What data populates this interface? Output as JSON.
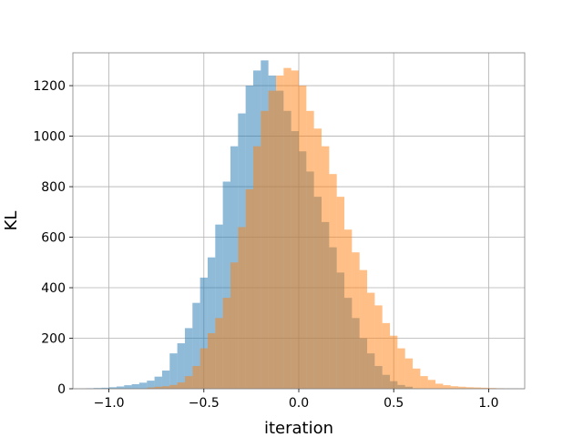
{
  "chart_data": {
    "type": "histogram",
    "title": "",
    "xlabel": "iteration",
    "ylabel": "KL",
    "xlim": [
      -1.19,
      1.19
    ],
    "ylim": [
      0,
      1330
    ],
    "grid": true,
    "legend": "none",
    "xticks": [
      -1.0,
      -0.5,
      0.0,
      0.5,
      1.0
    ],
    "xtick_labels": [
      "−1.0",
      "−0.5",
      "0.0",
      "0.5",
      "1.0"
    ],
    "yticks": [
      0,
      200,
      400,
      600,
      800,
      1000,
      1200
    ],
    "ytick_labels": [
      "0",
      "200",
      "400",
      "600",
      "800",
      "1000",
      "1200"
    ],
    "series": [
      {
        "color": "#1f77b4",
        "opacity": 0.5,
        "bin_edges": [
          -1.12,
          -1.08,
          -1.04,
          -1.0,
          -0.96,
          -0.92,
          -0.88,
          -0.84,
          -0.8,
          -0.76,
          -0.72,
          -0.68,
          -0.64,
          -0.6,
          -0.56,
          -0.52,
          -0.48,
          -0.44,
          -0.4,
          -0.36,
          -0.32,
          -0.28,
          -0.24,
          -0.2,
          -0.16,
          -0.12,
          -0.08,
          -0.04,
          0.0,
          0.04,
          0.08,
          0.12,
          0.16,
          0.2,
          0.24,
          0.28,
          0.32,
          0.36,
          0.4,
          0.44,
          0.48,
          0.52,
          0.56,
          0.6
        ],
        "counts": [
          2,
          3,
          4,
          6,
          9,
          14,
          18,
          24,
          32,
          48,
          72,
          140,
          180,
          240,
          340,
          440,
          520,
          650,
          820,
          960,
          1090,
          1200,
          1260,
          1300,
          1240,
          1180,
          1100,
          1020,
          940,
          860,
          760,
          660,
          560,
          460,
          360,
          280,
          200,
          140,
          90,
          55,
          30,
          15,
          8
        ]
      },
      {
        "color": "#ff7f0e",
        "opacity": 0.5,
        "bin_edges": [
          -0.8,
          -0.76,
          -0.72,
          -0.68,
          -0.64,
          -0.6,
          -0.56,
          -0.52,
          -0.48,
          -0.44,
          -0.4,
          -0.36,
          -0.32,
          -0.28,
          -0.24,
          -0.2,
          -0.16,
          -0.12,
          -0.08,
          -0.04,
          0.0,
          0.04,
          0.08,
          0.12,
          0.16,
          0.2,
          0.24,
          0.28,
          0.32,
          0.36,
          0.4,
          0.44,
          0.48,
          0.52,
          0.56,
          0.6,
          0.64,
          0.68,
          0.72,
          0.76,
          0.8,
          0.84,
          0.88,
          0.92,
          0.96,
          1.0,
          1.04,
          1.08
        ],
        "counts": [
          5,
          8,
          10,
          15,
          25,
          50,
          90,
          160,
          220,
          280,
          360,
          500,
          640,
          790,
          960,
          1100,
          1180,
          1240,
          1270,
          1260,
          1200,
          1100,
          1030,
          960,
          850,
          760,
          630,
          540,
          470,
          380,
          330,
          260,
          210,
          160,
          120,
          80,
          50,
          35,
          20,
          14,
          10,
          8,
          6,
          5,
          4,
          3,
          2
        ]
      }
    ]
  }
}
